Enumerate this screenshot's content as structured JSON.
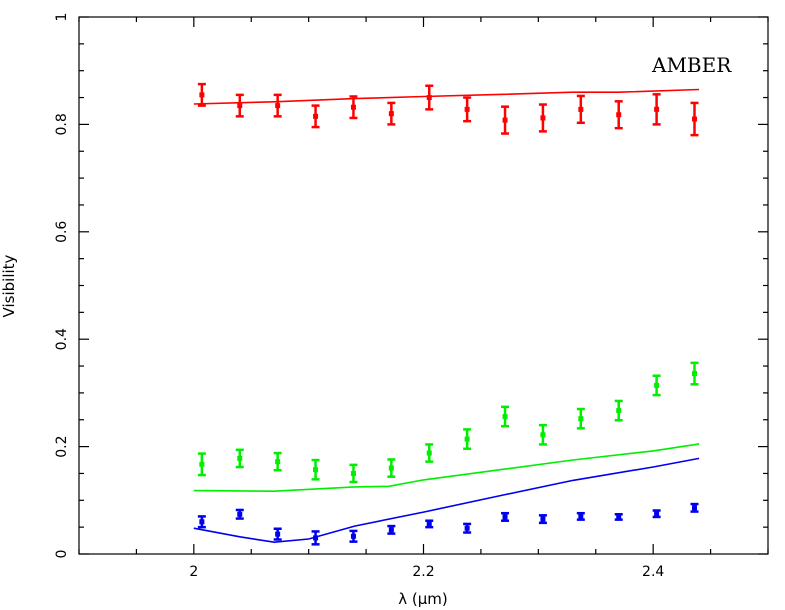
{
  "chart_data": {
    "type": "scatter",
    "title": "",
    "annotation": "AMBER",
    "xlabel": "λ (μm)",
    "ylabel": "Visibility",
    "xlim": [
      1.9,
      2.5
    ],
    "ylim": [
      0,
      1
    ],
    "xticks_major": [
      2,
      2.2,
      2.4
    ],
    "xtick_labels": [
      "2",
      "2.2",
      "2.4"
    ],
    "yticks_major": [
      0,
      0.2,
      0.4,
      0.6,
      0.8,
      1
    ],
    "ytick_labels": [
      "0",
      "0.2",
      "0.4",
      "0.6",
      "0.8",
      "1"
    ],
    "grid": false,
    "series": [
      {
        "color": "#ff0000",
        "points": [
          {
            "x": 2.007,
            "y": 0.855,
            "err": 0.02
          },
          {
            "x": 2.04,
            "y": 0.835,
            "err": 0.02
          },
          {
            "x": 2.073,
            "y": 0.835,
            "err": 0.02
          },
          {
            "x": 2.106,
            "y": 0.815,
            "err": 0.02
          },
          {
            "x": 2.139,
            "y": 0.832,
            "err": 0.02
          },
          {
            "x": 2.172,
            "y": 0.82,
            "err": 0.02
          },
          {
            "x": 2.205,
            "y": 0.85,
            "err": 0.022
          },
          {
            "x": 2.238,
            "y": 0.828,
            "err": 0.022
          },
          {
            "x": 2.271,
            "y": 0.808,
            "err": 0.025
          },
          {
            "x": 2.304,
            "y": 0.812,
            "err": 0.025
          },
          {
            "x": 2.337,
            "y": 0.828,
            "err": 0.025
          },
          {
            "x": 2.37,
            "y": 0.818,
            "err": 0.025
          },
          {
            "x": 2.403,
            "y": 0.828,
            "err": 0.028
          },
          {
            "x": 2.436,
            "y": 0.81,
            "err": 0.03
          }
        ],
        "model": {
          "x": [
            2.0,
            2.07,
            2.14,
            2.2,
            2.27,
            2.33,
            2.37,
            2.44
          ],
          "y": [
            0.838,
            0.842,
            0.848,
            0.852,
            0.856,
            0.86,
            0.86,
            0.865
          ]
        }
      },
      {
        "color": "#00ee00",
        "points": [
          {
            "x": 2.007,
            "y": 0.167,
            "err": 0.02
          },
          {
            "x": 2.04,
            "y": 0.178,
            "err": 0.016
          },
          {
            "x": 2.073,
            "y": 0.172,
            "err": 0.016
          },
          {
            "x": 2.106,
            "y": 0.157,
            "err": 0.018
          },
          {
            "x": 2.139,
            "y": 0.15,
            "err": 0.016
          },
          {
            "x": 2.172,
            "y": 0.16,
            "err": 0.016
          },
          {
            "x": 2.205,
            "y": 0.188,
            "err": 0.016
          },
          {
            "x": 2.238,
            "y": 0.214,
            "err": 0.018
          },
          {
            "x": 2.271,
            "y": 0.256,
            "err": 0.018
          },
          {
            "x": 2.304,
            "y": 0.222,
            "err": 0.018
          },
          {
            "x": 2.337,
            "y": 0.252,
            "err": 0.018
          },
          {
            "x": 2.37,
            "y": 0.267,
            "err": 0.018
          },
          {
            "x": 2.403,
            "y": 0.314,
            "err": 0.018
          },
          {
            "x": 2.436,
            "y": 0.336,
            "err": 0.02
          }
        ],
        "model": {
          "x": [
            2.0,
            2.07,
            2.14,
            2.17,
            2.2,
            2.27,
            2.33,
            2.4,
            2.44
          ],
          "y": [
            0.118,
            0.117,
            0.125,
            0.126,
            0.138,
            0.158,
            0.175,
            0.192,
            0.205
          ]
        }
      },
      {
        "color": "#0000ee",
        "points": [
          {
            "x": 2.007,
            "y": 0.06,
            "err": 0.01
          },
          {
            "x": 2.04,
            "y": 0.074,
            "err": 0.008
          },
          {
            "x": 2.073,
            "y": 0.037,
            "err": 0.01
          },
          {
            "x": 2.106,
            "y": 0.03,
            "err": 0.012
          },
          {
            "x": 2.139,
            "y": 0.033,
            "err": 0.01
          },
          {
            "x": 2.172,
            "y": 0.045,
            "err": 0.007
          },
          {
            "x": 2.205,
            "y": 0.056,
            "err": 0.006
          },
          {
            "x": 2.238,
            "y": 0.048,
            "err": 0.008
          },
          {
            "x": 2.271,
            "y": 0.069,
            "err": 0.007
          },
          {
            "x": 2.304,
            "y": 0.065,
            "err": 0.007
          },
          {
            "x": 2.337,
            "y": 0.07,
            "err": 0.006
          },
          {
            "x": 2.37,
            "y": 0.069,
            "err": 0.005
          },
          {
            "x": 2.403,
            "y": 0.075,
            "err": 0.006
          },
          {
            "x": 2.436,
            "y": 0.086,
            "err": 0.007
          }
        ],
        "model": {
          "x": [
            2.0,
            2.04,
            2.07,
            2.1,
            2.14,
            2.2,
            2.27,
            2.33,
            2.4,
            2.44
          ],
          "y": [
            0.048,
            0.032,
            0.022,
            0.028,
            0.052,
            0.078,
            0.11,
            0.137,
            0.162,
            0.178
          ]
        }
      }
    ]
  }
}
